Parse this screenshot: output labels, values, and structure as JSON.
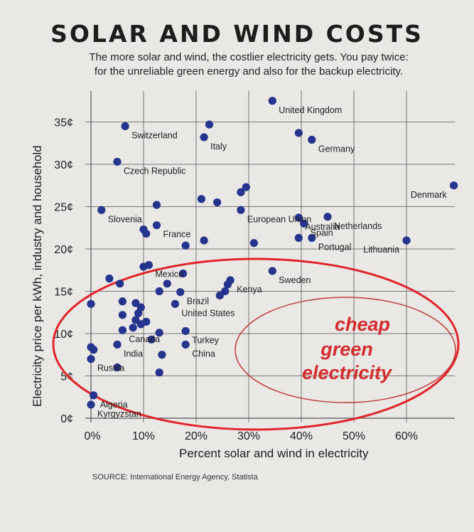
{
  "header": {
    "title": "SOLAR AND WIND COSTS",
    "subtitle_line1": "The more solar and wind, the costlier electricity gets. You pay twice:",
    "subtitle_line2": "for the unreliable green energy and also for the backup electricity."
  },
  "source": "SOURCE: International Energy Agency, Statista",
  "annotation": {
    "lines": [
      "cheap",
      "green",
      "electricity"
    ],
    "color": "#d42a2e"
  },
  "colors": {
    "dot": "#26348e",
    "grid": "#555555",
    "ellipse": "#e2232a"
  },
  "chart_data": {
    "type": "scatter",
    "xlabel": "Percent solar and wind in electricity",
    "ylabel": "Electricity price per kWh, industry and household",
    "xlim": [
      0,
      70
    ],
    "ylim": [
      0,
      39
    ],
    "x_ticks": [
      0,
      10,
      20,
      30,
      40,
      50,
      60
    ],
    "x_tick_labels": [
      "0%",
      "10%",
      "20%",
      "30%",
      "40%",
      "50%",
      "60%"
    ],
    "y_ticks": [
      0,
      5,
      10,
      15,
      20,
      25,
      30,
      35
    ],
    "y_tick_labels": [
      "0¢",
      "5¢",
      "10¢",
      "15¢",
      "20¢",
      "25¢",
      "30¢",
      "35¢"
    ],
    "grid": true,
    "points": [
      {
        "label": "United Kingdom",
        "x": 34.5,
        "y": 37.5
      },
      {
        "label": "Switzerland",
        "x": 6.5,
        "y": 34.5
      },
      {
        "label": "",
        "x": 22.5,
        "y": 34.7
      },
      {
        "label": "Italy",
        "x": 21.5,
        "y": 33.2
      },
      {
        "label": "",
        "x": 39.5,
        "y": 33.7
      },
      {
        "label": "Germany",
        "x": 42,
        "y": 32.9
      },
      {
        "label": "Czech Republic",
        "x": 5,
        "y": 30.3
      },
      {
        "label": "Denmark",
        "x": 69,
        "y": 27.5
      },
      {
        "label": "",
        "x": 29.5,
        "y": 27.3
      },
      {
        "label": "",
        "x": 28.5,
        "y": 26.7
      },
      {
        "label": "",
        "x": 21,
        "y": 25.9
      },
      {
        "label": "",
        "x": 24,
        "y": 25.5
      },
      {
        "label": "European Union",
        "x": 28.5,
        "y": 24.6
      },
      {
        "label": "",
        "x": 12.5,
        "y": 25.2
      },
      {
        "label": "Slovenia",
        "x": 2,
        "y": 24.6
      },
      {
        "label": "France",
        "x": 12.5,
        "y": 22.8
      },
      {
        "label": "",
        "x": 10,
        "y": 22.3
      },
      {
        "label": "",
        "x": 10.5,
        "y": 21.8
      },
      {
        "label": "Australia",
        "x": 39.5,
        "y": 23.7
      },
      {
        "label": "Spain",
        "x": 40.5,
        "y": 23.0
      },
      {
        "label": "Netherlands",
        "x": 45,
        "y": 23.8
      },
      {
        "label": "",
        "x": 21.5,
        "y": 21.0
      },
      {
        "label": "",
        "x": 18,
        "y": 20.4
      },
      {
        "label": "",
        "x": 31,
        "y": 20.7
      },
      {
        "label": "",
        "x": 39.5,
        "y": 21.3
      },
      {
        "label": "Portugal",
        "x": 42,
        "y": 21.3
      },
      {
        "label": "Lithuania",
        "x": 60,
        "y": 21.0
      },
      {
        "label": "Mexico",
        "x": 11,
        "y": 18.1
      },
      {
        "label": "",
        "x": 10,
        "y": 17.9
      },
      {
        "label": "",
        "x": 17.5,
        "y": 17.1
      },
      {
        "label": "Sweden",
        "x": 34.5,
        "y": 17.4
      },
      {
        "label": "Kenya",
        "x": 26.5,
        "y": 16.3
      },
      {
        "label": "",
        "x": 26,
        "y": 15.8
      },
      {
        "label": "",
        "x": 3.5,
        "y": 16.5
      },
      {
        "label": "",
        "x": 5.5,
        "y": 15.9
      },
      {
        "label": "",
        "x": 14.5,
        "y": 15.9
      },
      {
        "label": "",
        "x": 13,
        "y": 15.0
      },
      {
        "label": "Brazil",
        "x": 17,
        "y": 14.9
      },
      {
        "label": "",
        "x": 25.5,
        "y": 15.0
      },
      {
        "label": "",
        "x": 24.5,
        "y": 14.5
      },
      {
        "label": "",
        "x": 0,
        "y": 13.5
      },
      {
        "label": "",
        "x": 6,
        "y": 13.8
      },
      {
        "label": "",
        "x": 8.5,
        "y": 13.6
      },
      {
        "label": "",
        "x": 9.5,
        "y": 13.1
      },
      {
        "label": "United States",
        "x": 16,
        "y": 13.5
      },
      {
        "label": "",
        "x": 6,
        "y": 12.2
      },
      {
        "label": "",
        "x": 9,
        "y": 12.4
      },
      {
        "label": "",
        "x": 8.5,
        "y": 11.6
      },
      {
        "label": "",
        "x": 10.5,
        "y": 11.4
      },
      {
        "label": "",
        "x": 9.5,
        "y": 11.1
      },
      {
        "label": "",
        "x": 8,
        "y": 10.7
      },
      {
        "label": "Canada",
        "x": 6,
        "y": 10.4
      },
      {
        "label": "",
        "x": 13,
        "y": 10.1
      },
      {
        "label": "Turkey",
        "x": 18,
        "y": 10.3
      },
      {
        "label": "",
        "x": 11.5,
        "y": 9.3
      },
      {
        "label": "India",
        "x": 5,
        "y": 8.7
      },
      {
        "label": "China",
        "x": 18,
        "y": 8.7
      },
      {
        "label": "",
        "x": 0,
        "y": 8.4
      },
      {
        "label": "",
        "x": 0.5,
        "y": 8.1
      },
      {
        "label": "Russia",
        "x": 0,
        "y": 7.0
      },
      {
        "label": "",
        "x": 13.5,
        "y": 7.5
      },
      {
        "label": "",
        "x": 5,
        "y": 6.0
      },
      {
        "label": "",
        "x": 13,
        "y": 5.4
      },
      {
        "label": "Algeria",
        "x": 0.5,
        "y": 2.7
      },
      {
        "label": "Kyrgyzstan",
        "x": 0,
        "y": 1.6
      }
    ]
  }
}
